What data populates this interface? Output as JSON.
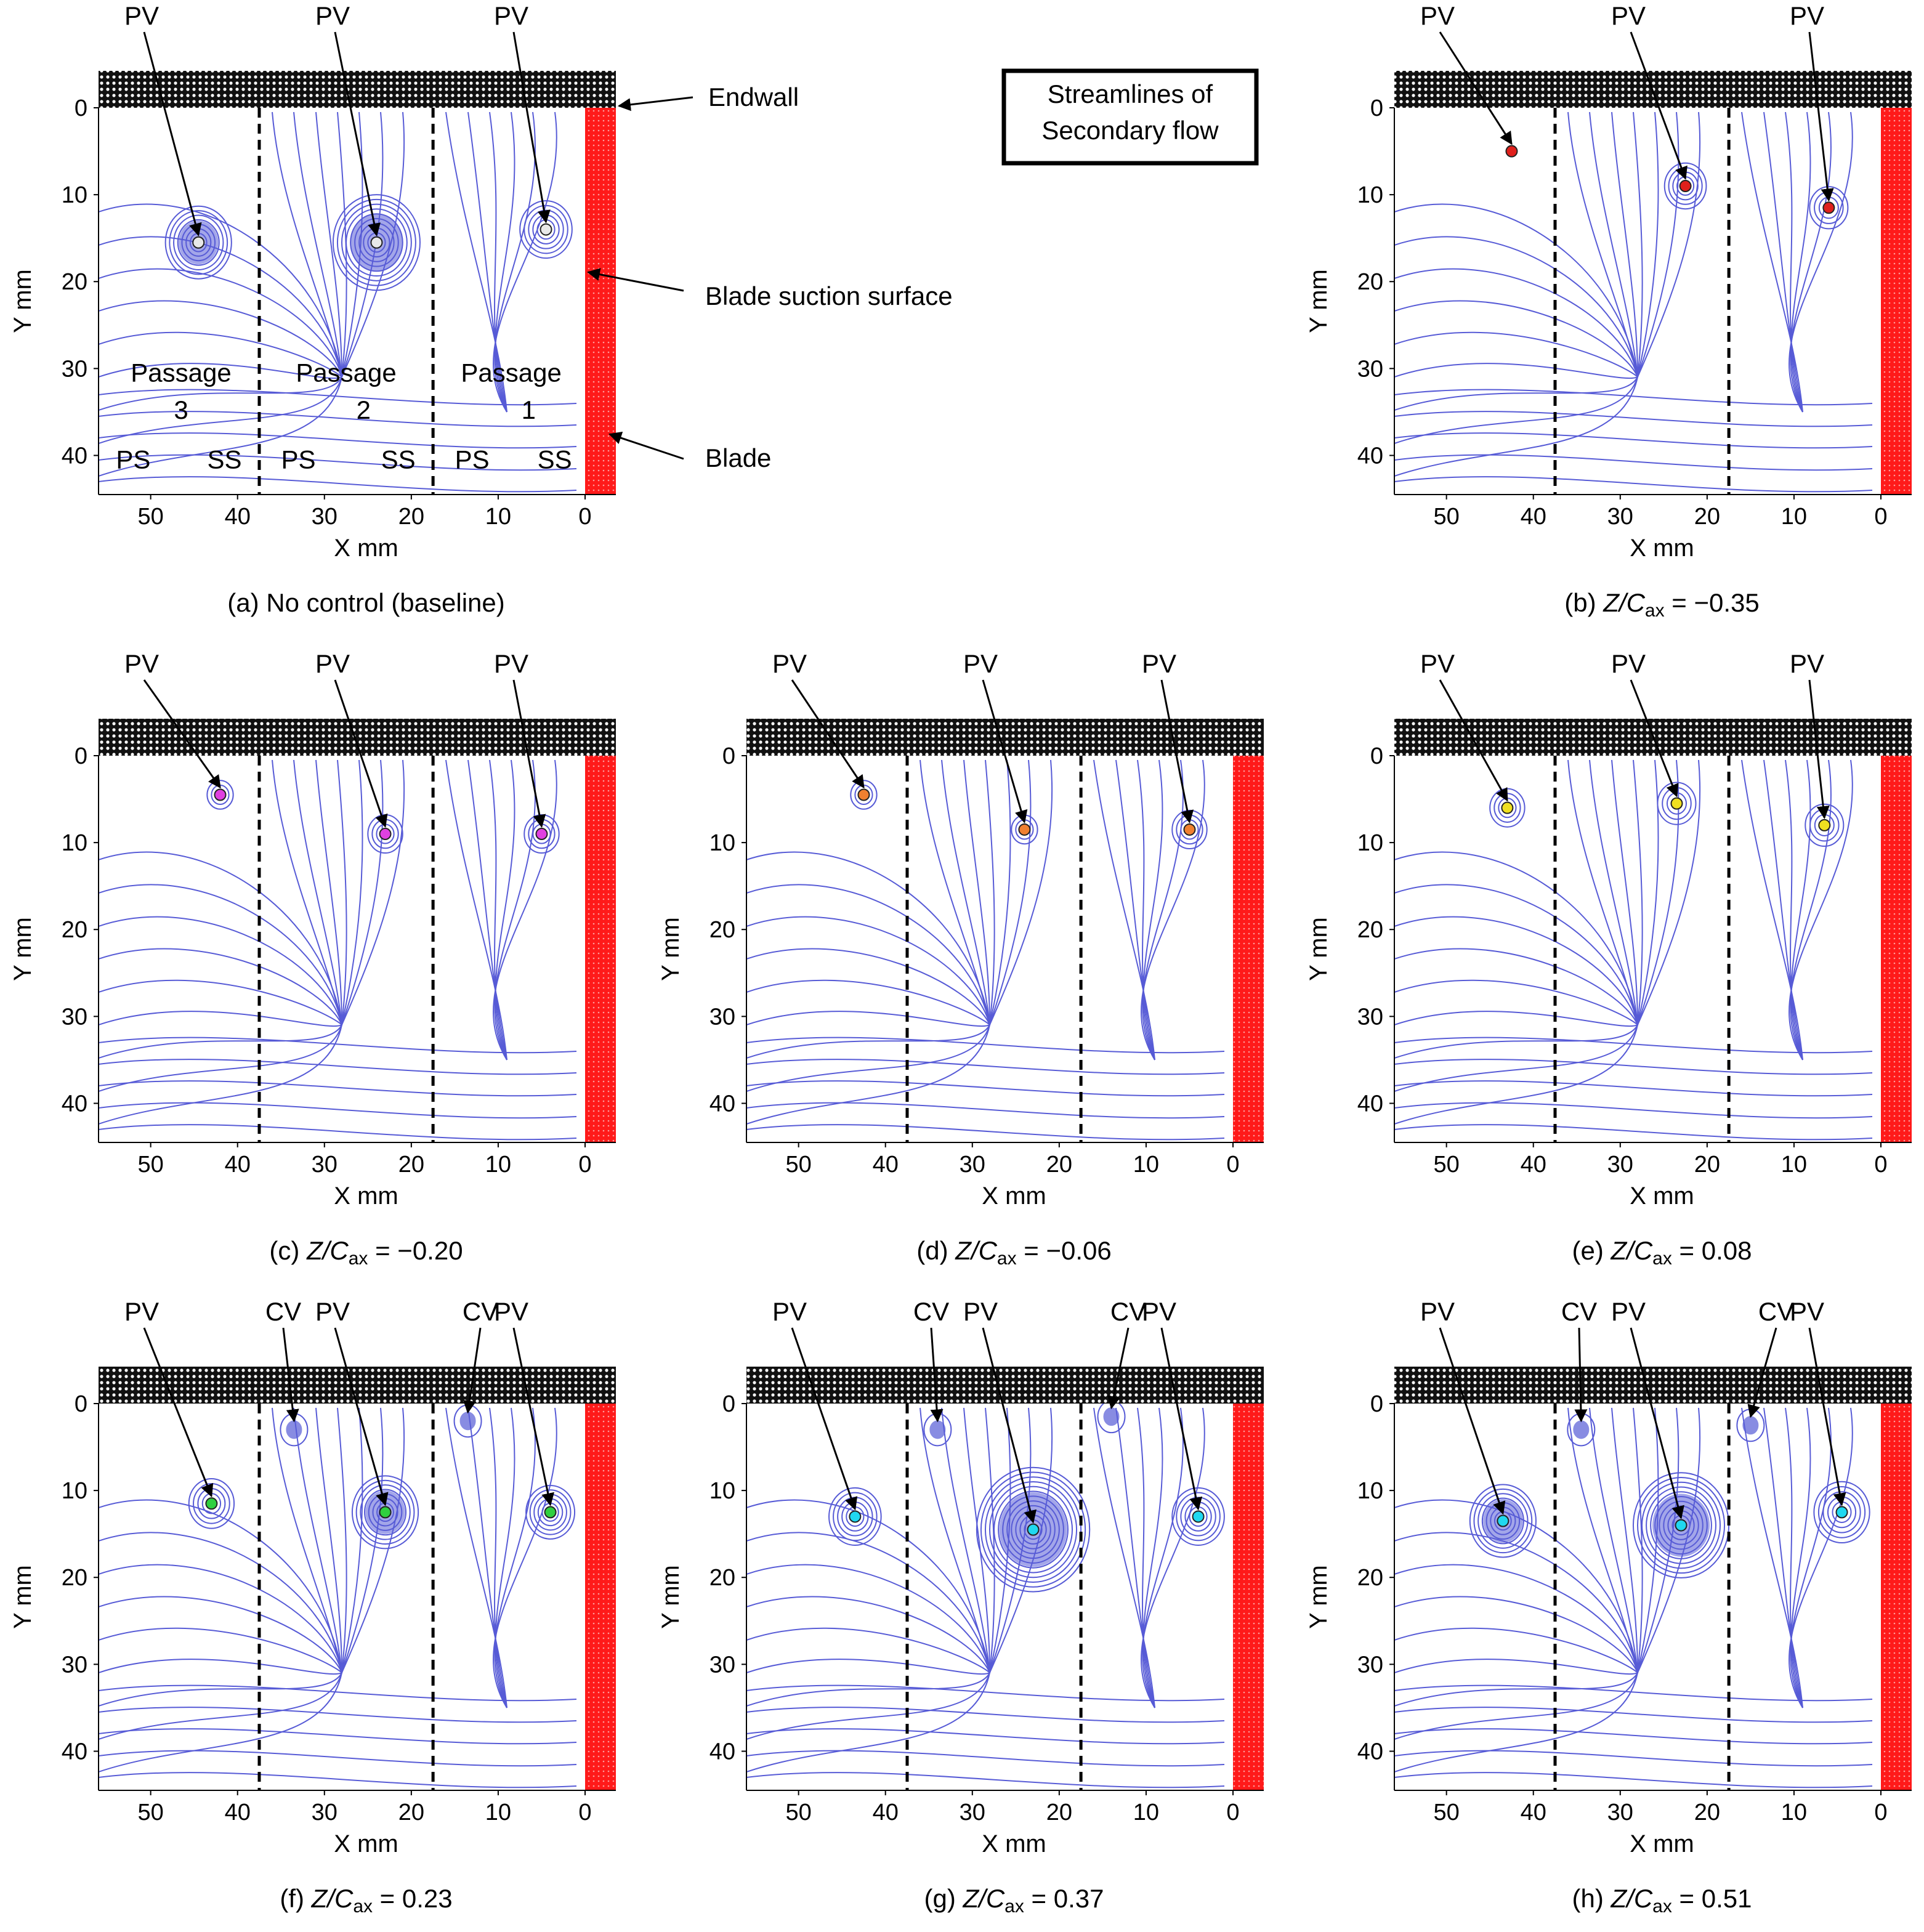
{
  "figure": {
    "legend_box": [
      "Streamlines of",
      "Secondary flow"
    ],
    "labels": {
      "endwall": "Endwall",
      "suction_surface": "Blade suction surface",
      "blade": "Blade",
      "pv": "PV",
      "cv": "CV",
      "passages": [
        [
          "Passage",
          "3"
        ],
        [
          "Passage",
          "2"
        ],
        [
          "Passage",
          "1"
        ]
      ],
      "ps": "PS",
      "ss": "SS"
    },
    "axes": {
      "xlabel": "X mm",
      "ylabel": "Y mm",
      "xticks": [
        "50",
        "40",
        "30",
        "20",
        "10",
        "0"
      ],
      "yticks": [
        "0",
        "10",
        "20",
        "30",
        "40"
      ]
    },
    "colors": {
      "streamline": "#3a3fd0",
      "blade": "#ff1a1a",
      "endwall": "#111111",
      "passage_line": "#000000"
    }
  },
  "chart_data": [
    {
      "type": "streamline",
      "panel": "a",
      "caption": {
        "pre": "(a) No control (baseline)",
        "z": "",
        "c": "",
        "sub": "",
        "post": ""
      },
      "pv_x": [
        44.5,
        24,
        4.5
      ],
      "pv_y": [
        15.5,
        15.5,
        14
      ],
      "pv_color": "#e8e8e8",
      "cv_x": [],
      "cv_y": [],
      "vortex_r": [
        3.8,
        5.0,
        3.0
      ]
    },
    {
      "type": "streamline",
      "panel": "b",
      "caption": {
        "pre": "(b) ",
        "z": "Z",
        "c": "/C",
        "sub": "ax",
        "post": " = −0.35"
      },
      "pv_x": [
        42.5,
        22.5,
        6
      ],
      "pv_y": [
        5,
        9,
        11.5
      ],
      "pv_color": "#e0201c",
      "cv_x": [],
      "cv_y": [],
      "vortex_r": [
        0,
        2.4,
        2.2
      ]
    },
    {
      "type": "streamline",
      "panel": "c",
      "caption": {
        "pre": "(c) ",
        "z": "Z",
        "c": "/C",
        "sub": "ax",
        "post": " = −0.20"
      },
      "pv_x": [
        42,
        23,
        5
      ],
      "pv_y": [
        4.5,
        9,
        9
      ],
      "pv_color": "#e040e0",
      "cv_x": [],
      "cv_y": [],
      "vortex_r": [
        1.5,
        2.0,
        2.0
      ]
    },
    {
      "type": "streamline",
      "panel": "d",
      "caption": {
        "pre": "(d) ",
        "z": "Z",
        "c": "/C",
        "sub": "ax",
        "post": " = −0.06"
      },
      "pv_x": [
        42.5,
        24,
        5
      ],
      "pv_y": [
        4.5,
        8.5,
        8.5
      ],
      "pv_color": "#f08030",
      "cv_x": [],
      "cv_y": [],
      "vortex_r": [
        1.5,
        1.5,
        2.0
      ]
    },
    {
      "type": "streamline",
      "panel": "e",
      "caption": {
        "pre": "(e) ",
        "z": "Z",
        "c": "/C",
        "sub": "ax",
        "post": " = 0.08"
      },
      "pv_x": [
        43,
        23.5,
        6.5
      ],
      "pv_y": [
        6,
        5.5,
        8
      ],
      "pv_color": "#f0e020",
      "cv_x": [],
      "cv_y": [],
      "vortex_r": [
        2.0,
        2.2,
        2.2
      ]
    },
    {
      "type": "streamline",
      "panel": "f",
      "caption": {
        "pre": "(f) ",
        "z": "Z",
        "c": "/C",
        "sub": "ax",
        "post": " = 0.23"
      },
      "pv_x": [
        43,
        23,
        4
      ],
      "pv_y": [
        11.5,
        12.5,
        12.5
      ],
      "pv_color": "#30d040",
      "cv_x": [
        33.5,
        13.5
      ],
      "cv_y": [
        3,
        2
      ],
      "vortex_r": [
        2.6,
        3.8,
        2.8
      ]
    },
    {
      "type": "streamline",
      "panel": "g",
      "caption": {
        "pre": "(g) ",
        "z": "Z",
        "c": "/C",
        "sub": "ax",
        "post": " = 0.37"
      },
      "pv_x": [
        43.5,
        23,
        4
      ],
      "pv_y": [
        13,
        14.5,
        13
      ],
      "pv_color": "#20d8f0",
      "cv_x": [
        34,
        14
      ],
      "cv_y": [
        3,
        1.5
      ],
      "vortex_r": [
        3.0,
        6.5,
        3.0
      ]
    },
    {
      "type": "streamline",
      "panel": "h",
      "caption": {
        "pre": "(h) ",
        "z": "Z",
        "c": "/C",
        "sub": "ax",
        "post": " = 0.51"
      },
      "pv_x": [
        43.5,
        23,
        4.5
      ],
      "pv_y": [
        13.5,
        14,
        12.5
      ],
      "pv_color": "#20d8f0",
      "cv_x": [
        34.5,
        15
      ],
      "cv_y": [
        3,
        2.5
      ],
      "vortex_r": [
        3.8,
        5.5,
        3.2
      ]
    }
  ]
}
